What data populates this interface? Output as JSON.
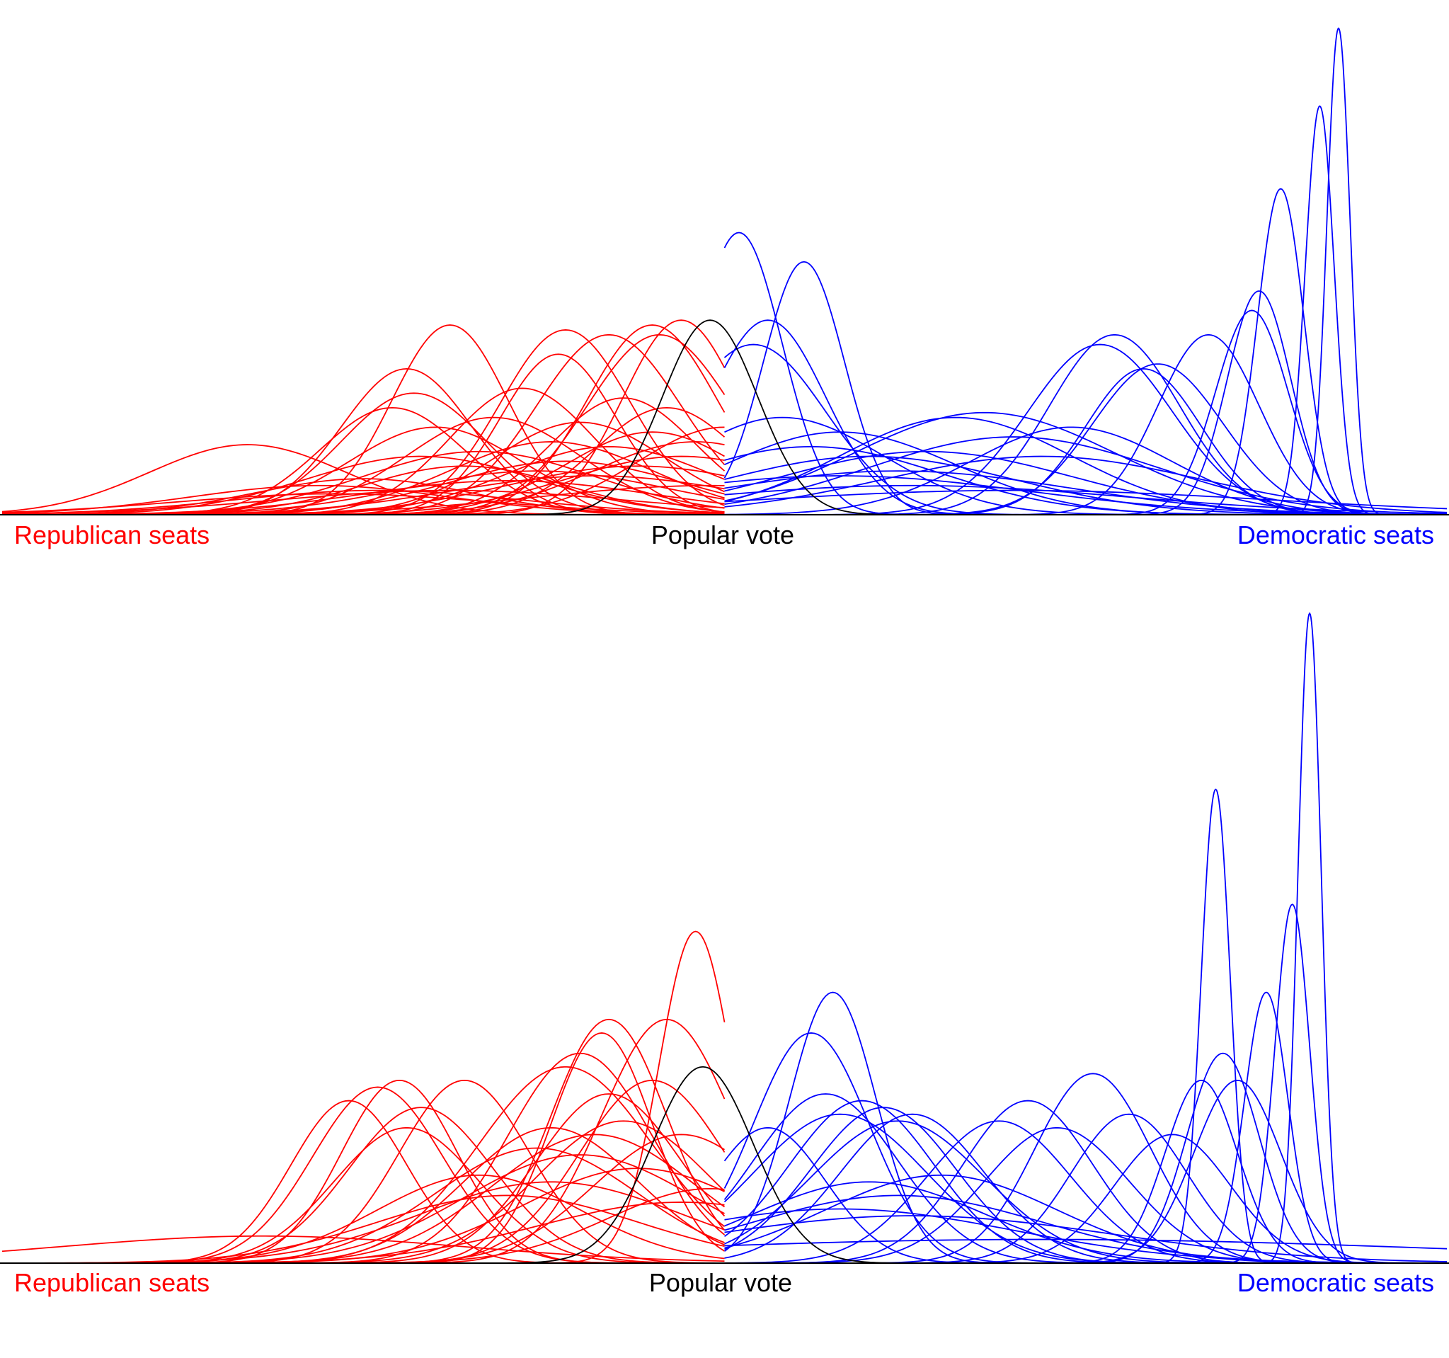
{
  "colors": {
    "republican": "#ff0000",
    "democratic": "#0000ff",
    "popular_vote": "#000000",
    "axis": "#000000",
    "background": "#ffffff"
  },
  "chart_data": [
    {
      "type": "line",
      "title": "",
      "xlabel": "",
      "ylabel": "",
      "axis_labels": {
        "left": "Republican seats",
        "center": "Popular vote",
        "right": "Democratic seats"
      },
      "x_range": [
        0,
        1
      ],
      "y_range": [
        0,
        1
      ],
      "grid": false,
      "legend": "none",
      "density_curves": {
        "republican": [
          {
            "mean": 0.17,
            "sd": 0.068,
            "peak": 0.144
          },
          {
            "mean": 0.22,
            "sd": 0.09,
            "peak": 0.06
          },
          {
            "mean": 0.23,
            "sd": 0.11,
            "peak": 0.043
          },
          {
            "mean": 0.25,
            "sd": 0.075,
            "peak": 0.074
          },
          {
            "mean": 0.26,
            "sd": 0.1,
            "peak": 0.05
          },
          {
            "mean": 0.27,
            "sd": 0.05,
            "peak": 0.22
          },
          {
            "mean": 0.28,
            "sd": 0.045,
            "peak": 0.3
          },
          {
            "mean": 0.285,
            "sd": 0.05,
            "peak": 0.25
          },
          {
            "mean": 0.29,
            "sd": 0.08,
            "peak": 0.12
          },
          {
            "mean": 0.3,
            "sd": 0.06,
            "peak": 0.18
          },
          {
            "mean": 0.31,
            "sd": 0.12,
            "peak": 0.05
          },
          {
            "mean": 0.32,
            "sd": 0.07,
            "peak": 0.1
          },
          {
            "mean": 0.33,
            "sd": 0.08,
            "peak": 0.13
          },
          {
            "mean": 0.34,
            "sd": 0.06,
            "peak": 0.2
          },
          {
            "mean": 0.35,
            "sd": 0.1,
            "peak": 0.07
          },
          {
            "mean": 0.36,
            "sd": 0.05,
            "peak": 0.26
          },
          {
            "mean": 0.37,
            "sd": 0.09,
            "peak": 0.09
          },
          {
            "mean": 0.38,
            "sd": 0.07,
            "peak": 0.15
          },
          {
            "mean": 0.39,
            "sd": 0.08,
            "peak": 0.11
          },
          {
            "mean": 0.4,
            "sd": 0.06,
            "peak": 0.19
          },
          {
            "mean": 0.41,
            "sd": 0.1,
            "peak": 0.08
          },
          {
            "mean": 0.42,
            "sd": 0.07,
            "peak": 0.14
          },
          {
            "mean": 0.43,
            "sd": 0.05,
            "peak": 0.24
          },
          {
            "mean": 0.44,
            "sd": 0.09,
            "peak": 0.1
          },
          {
            "mean": 0.45,
            "sd": 0.06,
            "peak": 0.17
          },
          {
            "mean": 0.46,
            "sd": 0.05,
            "peak": 0.22
          },
          {
            "mean": 0.47,
            "sd": 0.08,
            "peak": 0.12
          },
          {
            "mean": 0.48,
            "sd": 0.07,
            "peak": 0.15
          },
          {
            "mean": 0.49,
            "sd": 0.12,
            "peak": 0.06
          },
          {
            "mean": 0.5,
            "sd": 0.06,
            "peak": 0.18
          },
          {
            "mean": 0.39,
            "sd": 0.045,
            "peak": 0.38
          },
          {
            "mean": 0.42,
            "sd": 0.05,
            "peak": 0.37
          },
          {
            "mean": 0.385,
            "sd": 0.04,
            "peak": 0.33
          },
          {
            "mean": 0.31,
            "sd": 0.04,
            "peak": 0.39
          },
          {
            "mean": 0.45,
            "sd": 0.045,
            "peak": 0.39
          },
          {
            "mean": 0.455,
            "sd": 0.05,
            "peak": 0.37
          },
          {
            "mean": 0.47,
            "sd": 0.04,
            "peak": 0.4
          }
        ],
        "democratic": [
          {
            "mean": 0.51,
            "sd": 0.03,
            "peak": 0.58
          },
          {
            "mean": 0.555,
            "sd": 0.028,
            "peak": 0.52
          },
          {
            "mean": 0.53,
            "sd": 0.04,
            "peak": 0.4
          },
          {
            "mean": 0.52,
            "sd": 0.05,
            "peak": 0.35
          },
          {
            "mean": 0.54,
            "sd": 0.07,
            "peak": 0.2
          },
          {
            "mean": 0.56,
            "sd": 0.09,
            "peak": 0.14
          },
          {
            "mean": 0.58,
            "sd": 0.08,
            "peak": 0.17
          },
          {
            "mean": 0.6,
            "sd": 0.1,
            "peak": 0.12
          },
          {
            "mean": 0.62,
            "sd": 0.12,
            "peak": 0.09
          },
          {
            "mean": 0.64,
            "sd": 0.1,
            "peak": 0.13
          },
          {
            "mean": 0.66,
            "sd": 0.08,
            "peak": 0.2
          },
          {
            "mean": 0.68,
            "sd": 0.09,
            "peak": 0.21
          },
          {
            "mean": 0.7,
            "sd": 0.1,
            "peak": 0.16
          },
          {
            "mean": 0.72,
            "sd": 0.11,
            "peak": 0.12
          },
          {
            "mean": 0.74,
            "sd": 0.07,
            "peak": 0.18
          },
          {
            "mean": 0.76,
            "sd": 0.05,
            "peak": 0.35
          },
          {
            "mean": 0.77,
            "sd": 0.045,
            "peak": 0.37
          },
          {
            "mean": 0.79,
            "sd": 0.04,
            "peak": 0.3
          },
          {
            "mean": 0.8,
            "sd": 0.045,
            "peak": 0.31
          },
          {
            "mean": 0.835,
            "sd": 0.035,
            "peak": 0.37
          },
          {
            "mean": 0.865,
            "sd": 0.025,
            "peak": 0.42
          },
          {
            "mean": 0.87,
            "sd": 0.022,
            "peak": 0.46
          },
          {
            "mean": 0.885,
            "sd": 0.016,
            "peak": 0.67
          },
          {
            "mean": 0.912,
            "sd": 0.01,
            "peak": 0.84
          },
          {
            "mean": 0.925,
            "sd": 0.008,
            "peak": 1.0
          },
          {
            "mean": 0.63,
            "sd": 0.15,
            "peak": 0.06
          },
          {
            "mean": 0.7,
            "sd": 0.18,
            "peak": 0.05
          },
          {
            "mean": 0.58,
            "sd": 0.13,
            "peak": 0.08
          }
        ]
      },
      "popular_vote_curve": {
        "mean": 0.49,
        "sd": 0.033,
        "peak": 0.4
      }
    },
    {
      "type": "line",
      "title": "",
      "xlabel": "",
      "ylabel": "",
      "axis_labels": {
        "left": "Republican seats",
        "center": "Popular vote",
        "right": "Democratic seats"
      },
      "x_range": [
        0,
        1
      ],
      "y_range": [
        0,
        1
      ],
      "grid": false,
      "legend": "none",
      "density_curves": {
        "republican": [
          {
            "mean": 0.18,
            "sd": 0.14,
            "peak": 0.04
          },
          {
            "mean": 0.24,
            "sd": 0.04,
            "peak": 0.24
          },
          {
            "mean": 0.26,
            "sd": 0.045,
            "peak": 0.26
          },
          {
            "mean": 0.275,
            "sd": 0.04,
            "peak": 0.27
          },
          {
            "mean": 0.28,
            "sd": 0.05,
            "peak": 0.2
          },
          {
            "mean": 0.29,
            "sd": 0.05,
            "peak": 0.23
          },
          {
            "mean": 0.32,
            "sd": 0.045,
            "peak": 0.27
          },
          {
            "mean": 0.33,
            "sd": 0.07,
            "peak": 0.13
          },
          {
            "mean": 0.35,
            "sd": 0.09,
            "peak": 0.1
          },
          {
            "mean": 0.37,
            "sd": 0.07,
            "peak": 0.17
          },
          {
            "mean": 0.38,
            "sd": 0.06,
            "peak": 0.2
          },
          {
            "mean": 0.39,
            "sd": 0.06,
            "peak": 0.29
          },
          {
            "mean": 0.4,
            "sd": 0.05,
            "peak": 0.31
          },
          {
            "mean": 0.41,
            "sd": 0.07,
            "peak": 0.19
          },
          {
            "mean": 0.42,
            "sd": 0.05,
            "peak": 0.25
          },
          {
            "mean": 0.415,
            "sd": 0.035,
            "peak": 0.34
          },
          {
            "mean": 0.42,
            "sd": 0.04,
            "peak": 0.36
          },
          {
            "mean": 0.43,
            "sd": 0.06,
            "peak": 0.21
          },
          {
            "mean": 0.44,
            "sd": 0.08,
            "peak": 0.14
          },
          {
            "mean": 0.45,
            "sd": 0.05,
            "peak": 0.27
          },
          {
            "mean": 0.46,
            "sd": 0.045,
            "peak": 0.36
          },
          {
            "mean": 0.47,
            "sd": 0.06,
            "peak": 0.19
          },
          {
            "mean": 0.48,
            "sd": 0.025,
            "peak": 0.49
          },
          {
            "mean": 0.49,
            "sd": 0.07,
            "peak": 0.11
          },
          {
            "mean": 0.47,
            "sd": 0.1,
            "peak": 0.09
          },
          {
            "mean": 0.38,
            "sd": 0.09,
            "peak": 0.12
          },
          {
            "mean": 0.4,
            "sd": 0.08,
            "peak": 0.16
          }
        ],
        "democratic": [
          {
            "mean": 0.53,
            "sd": 0.04,
            "peak": 0.2
          },
          {
            "mean": 0.56,
            "sd": 0.04,
            "peak": 0.34
          },
          {
            "mean": 0.575,
            "sd": 0.03,
            "peak": 0.4
          },
          {
            "mean": 0.57,
            "sd": 0.05,
            "peak": 0.25
          },
          {
            "mean": 0.58,
            "sd": 0.06,
            "peak": 0.22
          },
          {
            "mean": 0.595,
            "sd": 0.05,
            "peak": 0.24
          },
          {
            "mean": 0.61,
            "sd": 0.05,
            "peak": 0.23
          },
          {
            "mean": 0.62,
            "sd": 0.06,
            "peak": 0.21
          },
          {
            "mean": 0.63,
            "sd": 0.05,
            "peak": 0.22
          },
          {
            "mean": 0.6,
            "sd": 0.08,
            "peak": 0.12
          },
          {
            "mean": 0.62,
            "sd": 0.1,
            "peak": 0.1
          },
          {
            "mean": 0.65,
            "sd": 0.08,
            "peak": 0.13
          },
          {
            "mean": 0.69,
            "sd": 0.05,
            "peak": 0.21
          },
          {
            "mean": 0.71,
            "sd": 0.045,
            "peak": 0.24
          },
          {
            "mean": 0.73,
            "sd": 0.05,
            "peak": 0.2
          },
          {
            "mean": 0.755,
            "sd": 0.04,
            "peak": 0.28
          },
          {
            "mean": 0.78,
            "sd": 0.04,
            "peak": 0.22
          },
          {
            "mean": 0.81,
            "sd": 0.04,
            "peak": 0.19
          },
          {
            "mean": 0.83,
            "sd": 0.025,
            "peak": 0.27
          },
          {
            "mean": 0.845,
            "sd": 0.025,
            "peak": 0.31
          },
          {
            "mean": 0.855,
            "sd": 0.03,
            "peak": 0.27
          },
          {
            "mean": 0.84,
            "sd": 0.01,
            "peak": 0.7
          },
          {
            "mean": 0.875,
            "sd": 0.015,
            "peak": 0.4
          },
          {
            "mean": 0.893,
            "sd": 0.012,
            "peak": 0.53
          },
          {
            "mean": 0.905,
            "sd": 0.008,
            "peak": 0.96
          },
          {
            "mean": 0.72,
            "sd": 0.28,
            "peak": 0.035
          },
          {
            "mean": 0.63,
            "sd": 0.14,
            "peak": 0.07
          },
          {
            "mean": 0.58,
            "sd": 0.12,
            "peak": 0.08
          }
        ]
      },
      "popular_vote_curve": {
        "mean": 0.485,
        "sd": 0.035,
        "peak": 0.29
      }
    }
  ]
}
